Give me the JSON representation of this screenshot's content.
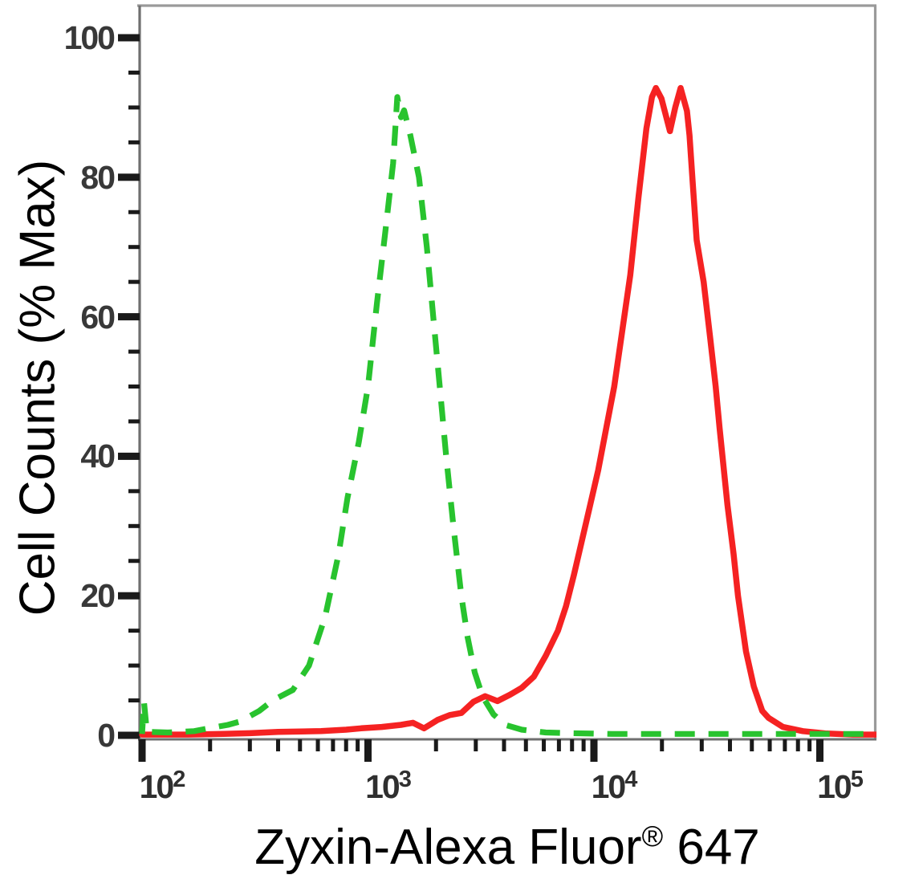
{
  "figure": {
    "y_axis_title": "Cell Counts (% Max)",
    "x_axis_title_prefix": "Zyxin-Alexa Fluor",
    "x_axis_title_sup": "®",
    "x_axis_title_suffix": " 647"
  },
  "chart_data": {
    "type": "line",
    "subtype": "flow-cytometry-histogram-overlay",
    "title": "",
    "xlabel": "Zyxin-Alexa Fluor® 647",
    "ylabel": "Cell Counts (% Max)",
    "x_scale": "log10",
    "x_range": [
      100,
      178000
    ],
    "y_range": [
      0,
      105
    ],
    "grid": false,
    "legend_position": "none",
    "x_major_ticks": [
      100,
      1000,
      10000,
      100000
    ],
    "x_major_tick_labels": [
      {
        "base": "10",
        "exp": "2"
      },
      {
        "base": "10",
        "exp": "3"
      },
      {
        "base": "10",
        "exp": "4"
      },
      {
        "base": "10",
        "exp": "5"
      }
    ],
    "x_minor_tick_multipliers": [
      2,
      3,
      4,
      5,
      6,
      7,
      8,
      9
    ],
    "y_major_ticks": [
      100,
      80,
      60,
      40,
      20,
      0
    ],
    "y_major_tick_labels": [
      "100",
      "80",
      "60",
      "40",
      "20",
      "0"
    ],
    "y_minor_step": 5,
    "axis_color": "#6f6f6f",
    "frame_color": "#9a9a9a",
    "tick_color": "#1a1a1a",
    "series": [
      {
        "name": "red-solid-curve",
        "color": "#f52222",
        "line_style": "solid",
        "line_width": 7.5,
        "peaks": [
          {
            "x": 18800,
            "y": 92.8
          },
          {
            "x": 24200,
            "y": 92.8
          }
        ],
        "points": [
          [
            100,
            0.1
          ],
          [
            160,
            0.1
          ],
          [
            230,
            0.2
          ],
          [
            300,
            0.3
          ],
          [
            400,
            0.5
          ],
          [
            620,
            0.6
          ],
          [
            800,
            0.8
          ],
          [
            932,
            1.0
          ],
          [
            1150,
            1.2
          ],
          [
            1400,
            1.5
          ],
          [
            1580,
            1.8
          ],
          [
            1770,
            1.0
          ],
          [
            2030,
            2.2
          ],
          [
            2300,
            2.9
          ],
          [
            2590,
            3.2
          ],
          [
            2930,
            4.8
          ],
          [
            3300,
            5.6
          ],
          [
            3740,
            4.9
          ],
          [
            4240,
            5.8
          ],
          [
            4790,
            6.8
          ],
          [
            5420,
            8.4
          ],
          [
            6120,
            11.4
          ],
          [
            6930,
            15
          ],
          [
            7520,
            18.5
          ],
          [
            8160,
            23
          ],
          [
            8860,
            28
          ],
          [
            9620,
            33
          ],
          [
            10440,
            38
          ],
          [
            11330,
            44
          ],
          [
            12300,
            50
          ],
          [
            13350,
            58
          ],
          [
            14490,
            66
          ],
          [
            15730,
            77
          ],
          [
            17070,
            87
          ],
          [
            18060,
            91.5
          ],
          [
            18800,
            92.8
          ],
          [
            19900,
            91.3
          ],
          [
            21700,
            86.6
          ],
          [
            22900,
            90
          ],
          [
            24200,
            92.8
          ],
          [
            25800,
            89.5
          ],
          [
            26500,
            86
          ],
          [
            27400,
            79
          ],
          [
            28500,
            71
          ],
          [
            30600,
            65
          ],
          [
            32700,
            57
          ],
          [
            34600,
            50
          ],
          [
            36000,
            44
          ],
          [
            39000,
            33
          ],
          [
            41500,
            26
          ],
          [
            43400,
            20
          ],
          [
            47100,
            12
          ],
          [
            51000,
            7
          ],
          [
            55600,
            3.5
          ],
          [
            59300,
            2.5
          ],
          [
            68600,
            1.2
          ],
          [
            84000,
            0.6
          ],
          [
            107000,
            0.25
          ],
          [
            140000,
            0.1
          ],
          [
            178000,
            0.1
          ]
        ]
      },
      {
        "name": "green-dashed-curve",
        "color": "#28c32e",
        "line_style": "dashed",
        "line_width": 7.2,
        "dash_pattern": [
          25,
          17
        ],
        "peaks": [
          {
            "x": 1350,
            "y": 91.5
          }
        ],
        "points": [
          [
            100,
            0.2
          ],
          [
            102,
            4.8
          ],
          [
            105,
            0.5
          ],
          [
            130,
            0.4
          ],
          [
            170,
            0.6
          ],
          [
            197,
            1.0
          ],
          [
            240,
            1.5
          ],
          [
            273,
            2.0
          ],
          [
            330,
            3.5
          ],
          [
            379,
            5.0
          ],
          [
            465,
            6.5
          ],
          [
            548,
            10
          ],
          [
            646,
            17
          ],
          [
            741,
            26
          ],
          [
            811,
            34
          ],
          [
            910,
            42
          ],
          [
            1000,
            50
          ],
          [
            1096,
            62
          ],
          [
            1191,
            72
          ],
          [
            1292,
            82
          ],
          [
            1348,
            91.5
          ],
          [
            1400,
            88.6
          ],
          [
            1445,
            89.6
          ],
          [
            1540,
            86
          ],
          [
            1681,
            80
          ],
          [
            1822,
            70
          ],
          [
            1945,
            60
          ],
          [
            2078,
            50
          ],
          [
            2218,
            40
          ],
          [
            2387,
            30
          ],
          [
            2590,
            20
          ],
          [
            2762,
            14
          ],
          [
            2967,
            9
          ],
          [
            3222,
            5.5
          ],
          [
            3590,
            3
          ],
          [
            4048,
            1.5
          ],
          [
            4788,
            0.8
          ],
          [
            6117,
            0.4
          ],
          [
            8000,
            0.3
          ],
          [
            12000,
            0.2
          ],
          [
            20000,
            0.2
          ],
          [
            35000,
            0.2
          ],
          [
            60000,
            0.2
          ],
          [
            100000,
            0.2
          ],
          [
            178000,
            0.2
          ]
        ]
      }
    ]
  }
}
